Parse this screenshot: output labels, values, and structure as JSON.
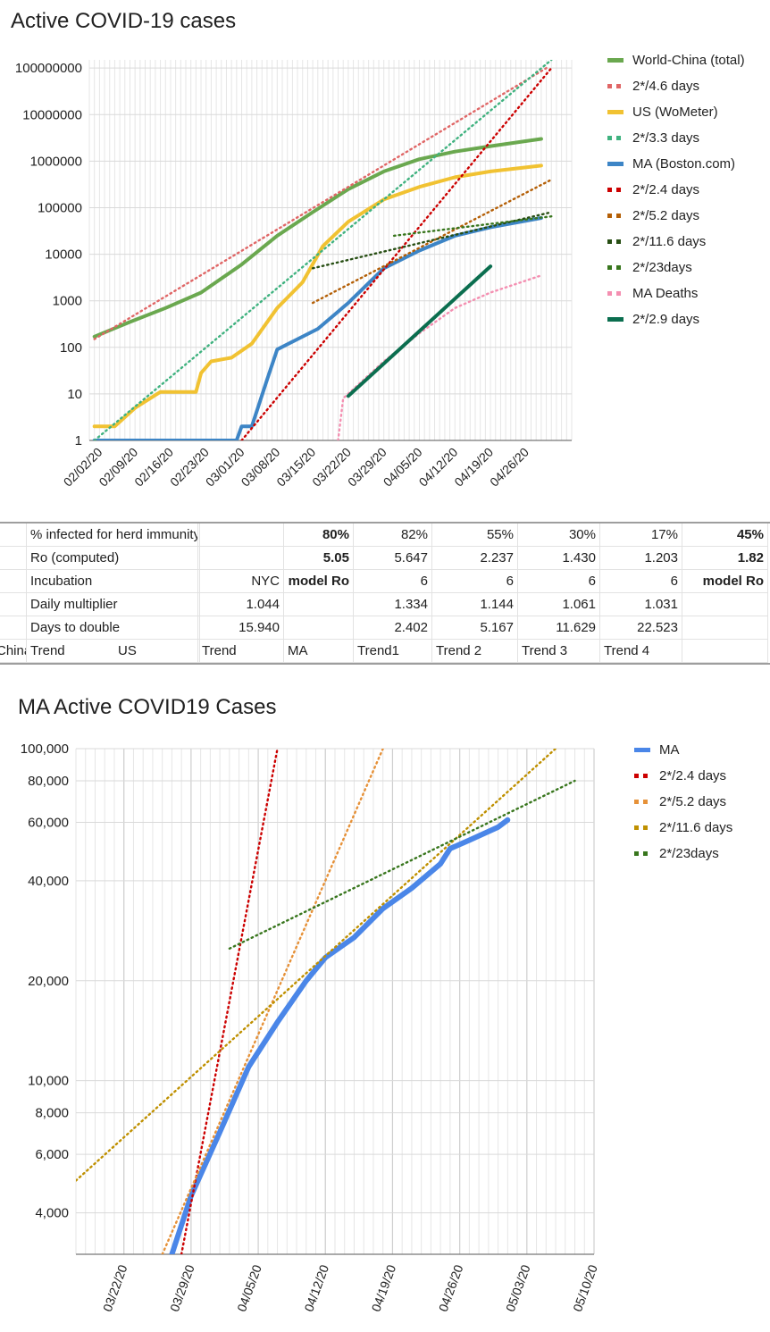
{
  "chart1": {
    "title": "Active COVID-19 cases",
    "type": "line",
    "y_scale": "log",
    "ylim": [
      1,
      150000000
    ],
    "y_ticks": [
      "1",
      "10",
      "100",
      "1000",
      "10000",
      "100000",
      "1000000",
      "10000000",
      "100000000"
    ],
    "x_ticks": [
      "02/02/20",
      "02/09/20",
      "02/16/20",
      "02/23/20",
      "03/01/20",
      "03/08/20",
      "03/15/20",
      "03/22/20",
      "03/29/20",
      "04/05/20",
      "04/12/20",
      "04/19/20",
      "04/26/20"
    ],
    "legend": [
      {
        "name": "World-China (total)",
        "color": "#6aa84f",
        "style": "solid"
      },
      {
        "name": "2*/4.6 days",
        "color": "#e06666",
        "style": "dotted"
      },
      {
        "name": "US (WoMeter)",
        "color": "#f1c232",
        "style": "solid"
      },
      {
        "name": "2*/3.3 days",
        "color": "#3fb27f",
        "style": "dotted"
      },
      {
        "name": "MA (Boston.com)",
        "color": "#3d85c6",
        "style": "solid"
      },
      {
        "name": "2*/2.4 days",
        "color": "#cc0000",
        "style": "dotted"
      },
      {
        "name": "2*/5.2 days",
        "color": "#b45f06",
        "style": "dotted"
      },
      {
        "name": "2*/11.6 days",
        "color": "#274e13",
        "style": "dotted"
      },
      {
        "name": "2*/23days",
        "color": "#38761d",
        "style": "dotted"
      },
      {
        "name": "MA Deaths",
        "color": "#f48fb1",
        "style": "dotted"
      },
      {
        "name": "2*/2.9 days",
        "color": "#0b6e4f",
        "style": "solid"
      }
    ]
  },
  "chart_data": [
    {
      "type": "line",
      "title": "Active COVID-19 cases",
      "y_scale": "log",
      "series": [
        {
          "name": "World-China (total)",
          "points": [
            [
              "2020-02-01",
              170
            ],
            [
              "2020-02-08",
              350
            ],
            [
              "2020-02-15",
              700
            ],
            [
              "2020-02-22",
              1500
            ],
            [
              "2020-03-01",
              6000
            ],
            [
              "2020-03-08",
              25000
            ],
            [
              "2020-03-15",
              80000
            ],
            [
              "2020-03-22",
              250000
            ],
            [
              "2020-03-29",
              600000
            ],
            [
              "2020-04-05",
              1100000
            ],
            [
              "2020-04-12",
              1600000
            ],
            [
              "2020-04-19",
              2100000
            ],
            [
              "2020-04-29",
              3000000
            ]
          ]
        },
        {
          "name": "US (WoMeter)",
          "points": [
            [
              "2020-02-01",
              2
            ],
            [
              "2020-02-05",
              2
            ],
            [
              "2020-02-09",
              5
            ],
            [
              "2020-02-14",
              11
            ],
            [
              "2020-02-21",
              11
            ],
            [
              "2020-02-22",
              28
            ],
            [
              "2020-02-24",
              50
            ],
            [
              "2020-02-28",
              60
            ],
            [
              "2020-03-03",
              120
            ],
            [
              "2020-03-08",
              700
            ],
            [
              "2020-03-13",
              2500
            ],
            [
              "2020-03-17",
              15000
            ],
            [
              "2020-03-22",
              50000
            ],
            [
              "2020-03-29",
              150000
            ],
            [
              "2020-04-05",
              280000
            ],
            [
              "2020-04-12",
              450000
            ],
            [
              "2020-04-19",
              600000
            ],
            [
              "2020-04-29",
              800000
            ]
          ]
        },
        {
          "name": "MA (Boston.com)",
          "points": [
            [
              "2020-02-01",
              1
            ],
            [
              "2020-02-29",
              1
            ],
            [
              "2020-03-01",
              2
            ],
            [
              "2020-03-03",
              2
            ],
            [
              "2020-03-06",
              20
            ],
            [
              "2020-03-08",
              90
            ],
            [
              "2020-03-12",
              150
            ],
            [
              "2020-03-16",
              250
            ],
            [
              "2020-03-22",
              900
            ],
            [
              "2020-03-29",
              5000
            ],
            [
              "2020-04-05",
              12000
            ],
            [
              "2020-04-12",
              25000
            ],
            [
              "2020-04-19",
              38000
            ],
            [
              "2020-04-29",
              60000
            ]
          ]
        },
        {
          "name": "2*/4.6 days",
          "points": [
            [
              "2020-02-01",
              150
            ],
            [
              "2020-04-30",
              100000000
            ]
          ]
        },
        {
          "name": "2*/3.3 days",
          "points": [
            [
              "2020-02-01",
              1
            ],
            [
              "2020-05-01",
              150000000
            ]
          ]
        },
        {
          "name": "2*/2.4 days",
          "points": [
            [
              "2020-03-01",
              1
            ],
            [
              "2020-05-01",
              100000000
            ]
          ]
        },
        {
          "name": "2*/5.2 days",
          "points": [
            [
              "2020-03-15",
              900
            ],
            [
              "2020-05-01",
              400000
            ]
          ]
        },
        {
          "name": "2*/11.6 days",
          "points": [
            [
              "2020-03-15",
              5000
            ],
            [
              "2020-05-01",
              80000
            ]
          ]
        },
        {
          "name": "2*/23days",
          "points": [
            [
              "2020-03-31",
              25000
            ],
            [
              "2020-05-01",
              65000
            ]
          ]
        },
        {
          "name": "MA Deaths",
          "points": [
            [
              "2020-03-20",
              1
            ],
            [
              "2020-03-21",
              8
            ],
            [
              "2020-03-29",
              50
            ],
            [
              "2020-04-05",
              200
            ],
            [
              "2020-04-12",
              700
            ],
            [
              "2020-04-19",
              1500
            ],
            [
              "2020-04-29",
              3500
            ]
          ]
        },
        {
          "name": "2*/2.9 days",
          "points": [
            [
              "2020-03-22",
              9
            ],
            [
              "2020-04-19",
              5500
            ]
          ]
        }
      ]
    },
    {
      "type": "line",
      "title": "MA Active COVID19 Cases",
      "y_scale": "log",
      "series": [
        {
          "name": "MA",
          "points": [
            [
              "2020-03-27",
              3000
            ],
            [
              "2020-03-29",
              4500
            ],
            [
              "2020-04-01",
              7000
            ],
            [
              "2020-04-04",
              11000
            ],
            [
              "2020-04-07",
              15000
            ],
            [
              "2020-04-10",
              20000
            ],
            [
              "2020-04-12",
              23500
            ],
            [
              "2020-04-15",
              27000
            ],
            [
              "2020-04-18",
              33000
            ],
            [
              "2020-04-21",
              38000
            ],
            [
              "2020-04-24",
              45000
            ],
            [
              "2020-04-25",
              50000
            ],
            [
              "2020-04-27",
              53000
            ],
            [
              "2020-04-30",
              58000
            ],
            [
              "2020-05-01",
              61000
            ]
          ]
        },
        {
          "name": "2*/2.4 days",
          "points": [
            [
              "2020-03-28",
              3000
            ],
            [
              "2020-04-07",
              100000
            ]
          ]
        },
        {
          "name": "2*/5.2 days",
          "points": [
            [
              "2020-03-26",
              3000
            ],
            [
              "2020-04-18",
              100000
            ]
          ]
        },
        {
          "name": "2*/11.6 days",
          "points": [
            [
              "2020-03-17",
              5000
            ],
            [
              "2020-05-06",
              100000
            ]
          ]
        },
        {
          "name": "2*/23days",
          "points": [
            [
              "2020-04-02",
              25000
            ],
            [
              "2020-05-08",
              80000
            ]
          ]
        }
      ]
    }
  ],
  "table": {
    "rows": [
      {
        "label": "% infected for herd immunity to start",
        "c4": "80%",
        "c6": "82%",
        "c7": "55%",
        "c8": "30%",
        "c9": "17%",
        "c10": "45%"
      },
      {
        "label": "Ro (computed)",
        "c4": "5.05",
        "c6": "5.647",
        "c7": "2.237",
        "c8": "1.430",
        "c9": "1.203",
        "c10": "1.82"
      },
      {
        "label": "Incubation",
        "c3": "NYC",
        "c4": "model Ro",
        "c6": "6",
        "c7": "6",
        "c8": "6",
        "c9": "6",
        "c10": "model Ro"
      },
      {
        "label": "Daily multiplier",
        "c3": "1.044",
        "c6": "1.334",
        "c7": "1.144",
        "c8": "1.061",
        "c9": "1.031"
      },
      {
        "label": "Days to double",
        "c3": "15.940",
        "c6": "2.402",
        "c7": "5.167",
        "c8": "11.629",
        "c9": "22.523"
      },
      {
        "c0": "China",
        "label": "Trend",
        "c2": "US",
        "c3": "Trend",
        "c4": "MA",
        "c6": "Trend1",
        "c7": "Trend 2",
        "c8": "Trend 3",
        "c9": "Trend 4"
      }
    ]
  },
  "chart2": {
    "title": "MA Active COVID19 Cases",
    "type": "line",
    "y_scale": "log",
    "ylim": [
      3000,
      100000
    ],
    "y_ticks": [
      "4,000",
      "6,000",
      "8,000",
      "10,000",
      "20,000",
      "40,000",
      "60,000",
      "80,000",
      "100,000"
    ],
    "x_ticks": [
      "03/22/20",
      "03/29/20",
      "04/05/20",
      "04/12/20",
      "04/19/20",
      "04/26/20",
      "05/03/20",
      "05/10/20"
    ],
    "legend": [
      {
        "name": "MA",
        "color": "#4a86e8",
        "style": "solid"
      },
      {
        "name": "2*/2.4 days",
        "color": "#cc0000",
        "style": "dotted"
      },
      {
        "name": "2*/5.2 days",
        "color": "#e69138",
        "style": "dotted"
      },
      {
        "name": "2*/11.6 days",
        "color": "#bf9000",
        "style": "dotted"
      },
      {
        "name": "2*/23days",
        "color": "#38761d",
        "style": "dotted"
      }
    ]
  }
}
